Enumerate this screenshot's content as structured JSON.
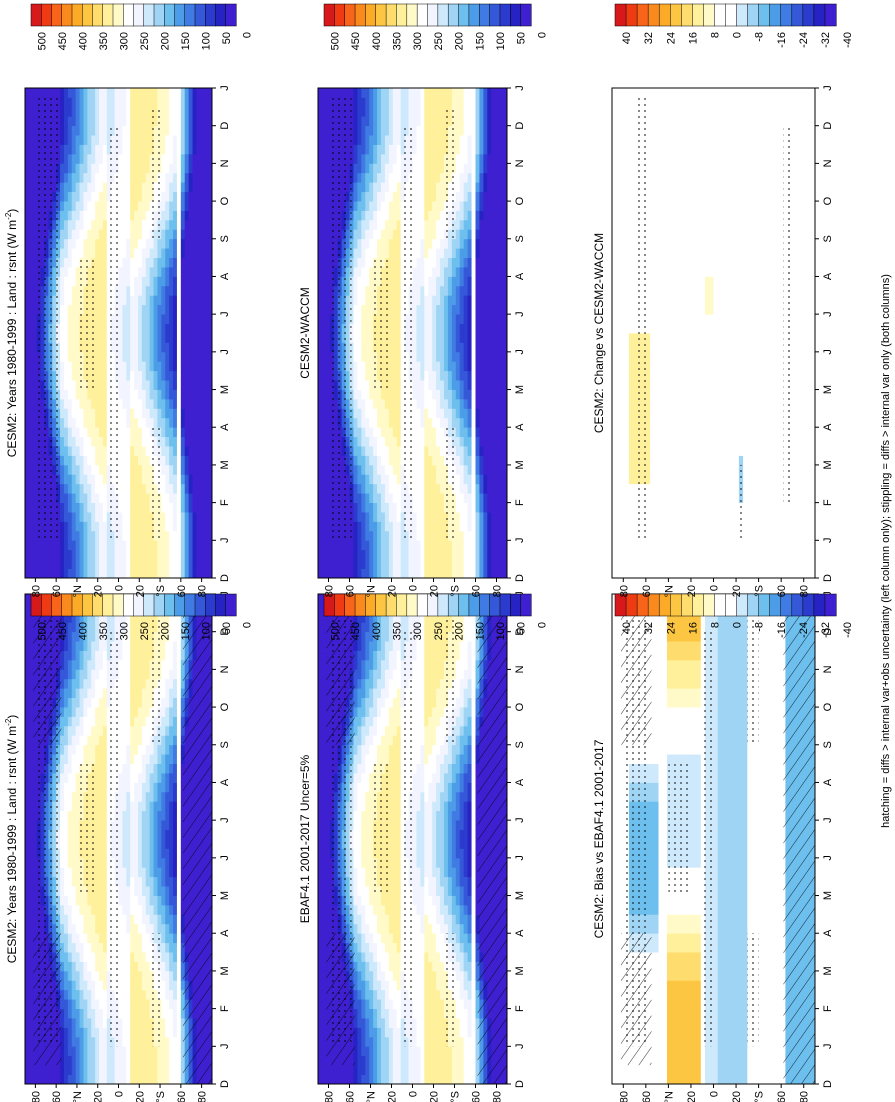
{
  "figure": {
    "footnote": "hatching = diffs > internal var+obs uncertainty (left column only); stippling = diffs > internal var only (both columns)"
  },
  "chart_data": [
    {
      "type": "heatmap",
      "id": "p1",
      "title": "CESM2: Years 1980-1999 : Land : rsnt (W m",
      "title_sup": "-2",
      "title_end": ")",
      "x_categories": [
        "D",
        "J",
        "F",
        "M",
        "A",
        "M",
        "J",
        "J",
        "A",
        "S",
        "O",
        "N",
        "D",
        "J"
      ],
      "y_ticks": [
        "80",
        "60",
        "°N",
        "20",
        "0",
        "20",
        "°S",
        "60",
        "80"
      ],
      "colorbar": [
        500,
        450,
        400,
        350,
        300,
        250,
        200,
        150,
        100,
        50,
        0
      ],
      "kind": "clim",
      "hatch": true
    },
    {
      "type": "heatmap",
      "id": "p2",
      "title": "CESM2: Years 1980-1999 : Land : rsnt (W m",
      "title_sup": "-2",
      "title_end": ")",
      "x_categories": [
        "D",
        "J",
        "F",
        "M",
        "A",
        "M",
        "J",
        "J",
        "A",
        "S",
        "O",
        "N",
        "D",
        "J"
      ],
      "y_ticks": [
        "80",
        "60",
        "°N",
        "20",
        "0",
        "20",
        "°S",
        "60",
        "80"
      ],
      "colorbar": [
        500,
        450,
        400,
        350,
        300,
        250,
        200,
        150,
        100,
        50,
        0
      ],
      "kind": "clim",
      "hatch": false
    },
    {
      "type": "heatmap",
      "id": "p3",
      "title": "EBAF4.1 2001-2017 Uncer=5%",
      "x_categories": [
        "D",
        "J",
        "F",
        "M",
        "A",
        "M",
        "J",
        "J",
        "A",
        "S",
        "O",
        "N",
        "D",
        "J"
      ],
      "y_ticks": [
        "80",
        "60",
        "°N",
        "20",
        "0",
        "20",
        "°S",
        "60",
        "80"
      ],
      "colorbar": [
        500,
        450,
        400,
        350,
        300,
        250,
        200,
        150,
        100,
        50,
        0
      ],
      "kind": "clim",
      "hatch": true
    },
    {
      "type": "heatmap",
      "id": "p4",
      "title": "CESM2-WACCM",
      "x_categories": [
        "D",
        "J",
        "F",
        "M",
        "A",
        "M",
        "J",
        "J",
        "A",
        "S",
        "O",
        "N",
        "D",
        "J"
      ],
      "y_ticks": [
        "80",
        "60",
        "°N",
        "20",
        "0",
        "20",
        "°S",
        "60",
        "80"
      ],
      "colorbar": [
        500,
        450,
        400,
        350,
        300,
        250,
        200,
        150,
        100,
        50,
        0
      ],
      "kind": "clim",
      "hatch": false
    },
    {
      "type": "heatmap",
      "id": "p5",
      "title": "CESM2: Bias vs EBAF4.1 2001-2017",
      "x_categories": [
        "D",
        "J",
        "F",
        "M",
        "A",
        "M",
        "J",
        "J",
        "A",
        "S",
        "O",
        "N",
        "D",
        "J"
      ],
      "y_ticks": [
        "80",
        "60",
        "°N",
        "20",
        "0",
        "20",
        "°S",
        "60",
        "80"
      ],
      "colorbar": [
        40,
        32,
        24,
        16,
        8,
        0,
        -8,
        -16,
        -24,
        -32,
        -40
      ],
      "kind": "bias",
      "hatch": true
    },
    {
      "type": "heatmap",
      "id": "p6",
      "title": "CESM2: Change vs CESM2-WACCM",
      "x_categories": [
        "D",
        "J",
        "F",
        "M",
        "A",
        "M",
        "J",
        "J",
        "A",
        "S",
        "O",
        "N",
        "D",
        "J"
      ],
      "y_ticks": [
        "80",
        "60",
        "°N",
        "20",
        "0",
        "20",
        "°S",
        "60",
        "80"
      ],
      "colorbar": [
        40,
        32,
        24,
        16,
        8,
        0,
        -8,
        -16,
        -24,
        -32,
        -40
      ],
      "kind": "change",
      "hatch": false
    }
  ],
  "colors": {
    "clim": [
      "#d7191c",
      "#ee3b14",
      "#f7641a",
      "#fb8a1e",
      "#fcab29",
      "#fdc642",
      "#fedd6e",
      "#fff09c",
      "#fffac8",
      "#ffffff",
      "#f2f5ff",
      "#cde9fb",
      "#9fd4f4",
      "#6dbfee",
      "#4d9ce8",
      "#3f7be2",
      "#3558d8",
      "#2a3bce",
      "#2722c4",
      "#3f20d0"
    ],
    "diff": [
      "#d7191c",
      "#ee3b14",
      "#f7641a",
      "#fb8a1e",
      "#fcab29",
      "#fdc642",
      "#fedd6e",
      "#fff09c",
      "#fffac8",
      "#ffffff",
      "#ffffff",
      "#cde9fb",
      "#9fd4f4",
      "#6dbfee",
      "#4d9ce8",
      "#3f7be2",
      "#3558d8",
      "#2a3bce",
      "#2722c4",
      "#3f20d0"
    ]
  }
}
